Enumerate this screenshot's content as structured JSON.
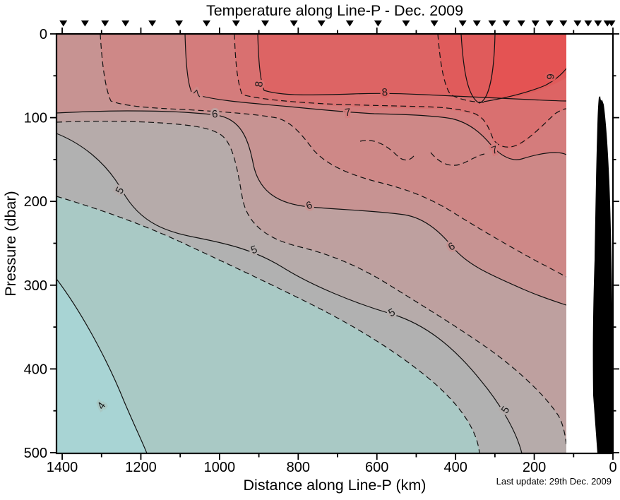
{
  "title": "Temperature along Line-P - Dec. 2009",
  "axes": {
    "xlabel": "Distance along Line-P (km)",
    "ylabel": "Pressure (dbar)",
    "x_major": [
      1400,
      1200,
      1000,
      800,
      600,
      400,
      200,
      0
    ],
    "x_minor": [
      1300,
      1100,
      900,
      700,
      500,
      300,
      100
    ],
    "y_major": [
      0,
      100,
      200,
      300,
      400,
      500
    ],
    "y_minor": [
      50,
      150,
      250,
      350,
      450
    ]
  },
  "footer": {
    "last_update": "Last update: 29th Dec. 2009"
  },
  "stations_km": [
    1397,
    1342,
    1291,
    1239,
    1171,
    1103,
    1033,
    958,
    884,
    811,
    741,
    669,
    597,
    526,
    454,
    382,
    346,
    307,
    271,
    233,
    197,
    161,
    126,
    90,
    63,
    38,
    14,
    0
  ],
  "colors": {
    "frame": "#000000",
    "contour": "#111111",
    "land": "#000000",
    "b4m": "#A8D4D4",
    "b4_45": "#A9C9C5",
    "b45_5": "#B1B1B1",
    "b5_55": "#B6ABAA",
    "b55_6": "#BEA09F",
    "b6_65": "#C79392",
    "b65_7": "#CE8887",
    "b7_75": "#D47C7C",
    "b75_8": "#D97070",
    "b8_85": "#DD6464",
    "b85_9": "#E05B5B",
    "b9p": "#E45353"
  },
  "contour_labels": [
    {
      "text": "4",
      "km": 1300,
      "dbar": 444,
      "rot": -55,
      "halo": "#A9C9C5"
    },
    {
      "text": "5",
      "km": 1253,
      "dbar": 187,
      "rot": -60,
      "halo": "#B4ACAB"
    },
    {
      "text": "5",
      "km": 912,
      "dbar": 258,
      "rot": -20,
      "halo": "#B4ACAB"
    },
    {
      "text": "5",
      "km": 562,
      "dbar": 333,
      "rot": -28,
      "halo": "#B4ACAB"
    },
    {
      "text": "5",
      "km": 273,
      "dbar": 449,
      "rot": -55,
      "halo": "#B4ACAB"
    },
    {
      "text": "6",
      "km": 1012,
      "dbar": 96,
      "rot": -5,
      "halo": "#BEA09F"
    },
    {
      "text": "6",
      "km": 772,
      "dbar": 205,
      "rot": -18,
      "halo": "#C79392"
    },
    {
      "text": "6",
      "km": 410,
      "dbar": 254,
      "rot": -30,
      "halo": "#C79392"
    },
    {
      "text": "7",
      "km": 1055,
      "dbar": 72,
      "rot": -45,
      "halo": "#CE8887"
    },
    {
      "text": "7",
      "km": 674,
      "dbar": 94,
      "rot": -8,
      "halo": "#D47C7C"
    },
    {
      "text": "7",
      "km": 301,
      "dbar": 139,
      "rot": -18,
      "halo": "#D47C7C"
    },
    {
      "text": "8",
      "km": 899,
      "dbar": 60,
      "rot": -85,
      "halo": "#D97070"
    },
    {
      "text": "8",
      "km": 580,
      "dbar": 70,
      "rot": -5,
      "halo": "#DD6464"
    },
    {
      "text": "9",
      "km": 158,
      "dbar": 51,
      "rot": -90,
      "halo": "#E05B5B"
    }
  ],
  "chart_data": {
    "type": "heatmap",
    "subtype": "filled-contour-section",
    "title": "Temperature along Line-P - Dec. 2009",
    "xlabel": "Distance along Line-P (km)",
    "ylabel": "Pressure (dbar)",
    "xlim": [
      1415,
      0
    ],
    "ylim": [
      500,
      0
    ],
    "x_axis_reversed": true,
    "y_axis_inverted": true,
    "level_unit": "degC",
    "levels_solid": [
      4,
      5,
      6,
      7,
      8,
      9
    ],
    "levels_dashed": [
      4.5,
      5.5,
      6.5,
      7.5,
      8.5
    ],
    "data_extent_km": [
      1415,
      118
    ],
    "land_mask_km": [
      55,
      0
    ],
    "station_markers_km": [
      1397,
      1342,
      1291,
      1239,
      1171,
      1103,
      1033,
      958,
      884,
      811,
      741,
      669,
      597,
      526,
      454,
      382,
      346,
      307,
      271,
      233,
      197,
      161,
      126,
      90,
      63,
      38,
      14,
      0
    ],
    "isotherms": [
      {
        "level": 4,
        "points_km_dbar": [
          [
            1413,
            292
          ],
          [
            1295,
            445
          ],
          [
            1186,
            500
          ]
        ]
      },
      {
        "level": 4.5,
        "points_km_dbar": [
          [
            1413,
            194
          ],
          [
            1090,
            250
          ],
          [
            766,
            322
          ],
          [
            461,
            413
          ],
          [
            339,
            500
          ]
        ]
      },
      {
        "level": 5,
        "points_km_dbar": [
          [
            1413,
            119
          ],
          [
            1253,
            187
          ],
          [
            912,
            258
          ],
          [
            562,
            334
          ],
          [
            273,
            449
          ],
          [
            233,
            500
          ]
        ]
      },
      {
        "level": 5.5,
        "points_km_dbar": [
          [
            1413,
            105
          ],
          [
            1124,
            107
          ],
          [
            942,
            194
          ],
          [
            800,
            253
          ],
          [
            567,
            300
          ],
          [
            316,
            375
          ],
          [
            138,
            455
          ],
          [
            118,
            489
          ]
        ]
      },
      {
        "level": 6,
        "points_km_dbar": [
          [
            1413,
            94
          ],
          [
            1012,
            96
          ],
          [
            772,
            206
          ],
          [
            410,
            255
          ],
          [
            118,
            323
          ]
        ]
      },
      {
        "level": 6.5,
        "points_km_dbar": [
          [
            1303,
            0
          ],
          [
            1276,
            80
          ],
          [
            1090,
            90
          ],
          [
            854,
            100
          ],
          [
            764,
            136
          ],
          [
            588,
            178
          ],
          [
            405,
            213
          ],
          [
            190,
            272
          ],
          [
            118,
            290
          ]
        ]
      },
      {
        "level": 7,
        "points_km_dbar": [
          [
            1087,
            0
          ],
          [
            1055,
            72
          ],
          [
            674,
            94
          ],
          [
            301,
            139
          ],
          [
            118,
            144
          ]
        ]
      },
      {
        "level": 7.5,
        "points_km_dbar": [
          [
            962,
            0
          ],
          [
            942,
            72
          ],
          [
            732,
            83
          ],
          [
            481,
            87
          ],
          [
            303,
            126
          ],
          [
            147,
            95
          ],
          [
            118,
            89
          ]
        ]
      },
      {
        "level": 8,
        "points_km_dbar": [
          [
            903,
            0
          ],
          [
            887,
            67
          ],
          [
            660,
            72
          ],
          [
            481,
            72
          ],
          [
            212,
            78
          ],
          [
            118,
            80
          ]
        ]
      },
      {
        "level": 8.5,
        "points_km_dbar": [
          [
            445,
            0
          ],
          [
            413,
            72
          ],
          [
            329,
            82
          ]
        ]
      },
      {
        "level": 9,
        "points_km_dbar": [
          [
            386,
            0
          ],
          [
            339,
            82
          ],
          [
            300,
            0
          ],
          [
            329,
            81
          ],
          [
            172,
            61
          ],
          [
            118,
            41
          ]
        ]
      }
    ]
  }
}
